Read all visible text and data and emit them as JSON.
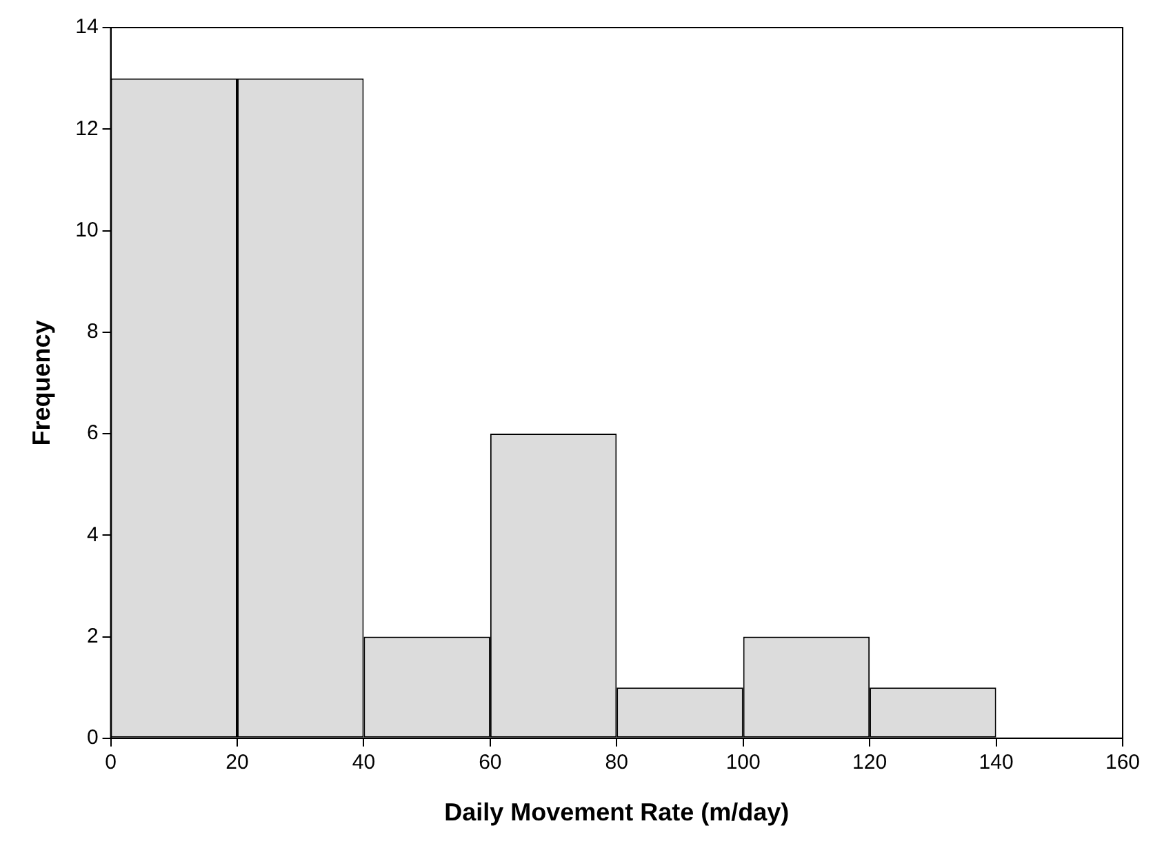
{
  "chart_data": {
    "type": "histogram",
    "xlabel": "Daily Movement Rate (m/day)",
    "ylabel": "Frequency",
    "bins": [
      0,
      20,
      40,
      60,
      80,
      100,
      120,
      140
    ],
    "values": [
      13,
      13,
      2,
      6,
      1,
      2,
      1
    ],
    "color": "#dcdcdc",
    "xlim": [
      0,
      160
    ],
    "xticks": [
      0,
      20,
      40,
      60,
      80,
      100,
      120,
      140,
      160
    ],
    "ylim": [
      0,
      14
    ],
    "yticks": [
      0,
      2,
      4,
      6,
      8,
      10,
      12,
      14
    ],
    "grid": false,
    "legend": false
  }
}
